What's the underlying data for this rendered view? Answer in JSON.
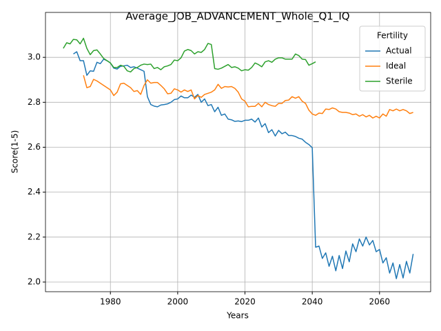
{
  "chart_data": {
    "type": "line",
    "title": "Average_JOB_ADVANCEMENT_Whole_Q1_IQ",
    "xlabel": "Years",
    "ylabel": "Score(1-5)",
    "legend_title": "Fertility",
    "legend_loc": "upper right",
    "grid": true,
    "xlim": [
      1960.7,
      2075.2
    ],
    "ylim": [
      1.957,
      3.2
    ],
    "xticks": [
      1980,
      2000,
      2020,
      2040,
      2060
    ],
    "yticks": [
      {
        "value": 2,
        "label": "2.0"
      },
      {
        "value": 2.2,
        "label": "2.2"
      },
      {
        "value": 2.4,
        "label": "2.4"
      },
      {
        "value": 2.6,
        "label": "2.6"
      },
      {
        "value": 2.8,
        "label": "2.8"
      },
      {
        "value": 3,
        "label": "3.0"
      }
    ],
    "x": [
      1966,
      1967,
      1968,
      1969,
      1970,
      1971,
      1972,
      1973,
      1974,
      1975,
      1976,
      1977,
      1978,
      1979,
      1980,
      1981,
      1982,
      1983,
      1984,
      1985,
      1986,
      1987,
      1988,
      1989,
      1990,
      1991,
      1992,
      1993,
      1994,
      1995,
      1996,
      1997,
      1998,
      1999,
      2000,
      2001,
      2002,
      2003,
      2004,
      2005,
      2006,
      2007,
      2008,
      2009,
      2010,
      2011,
      2012,
      2013,
      2014,
      2015,
      2016,
      2017,
      2018,
      2019,
      2020,
      2021,
      2022,
      2023,
      2024,
      2025,
      2026,
      2027,
      2028,
      2029,
      2030,
      2031,
      2032,
      2033,
      2034,
      2035,
      2036,
      2037,
      2038,
      2039,
      2040,
      2041,
      2042,
      2043,
      2044,
      2045,
      2046,
      2047,
      2048,
      2049,
      2050,
      2051,
      2052,
      2053,
      2054,
      2055,
      2056,
      2057,
      2058,
      2059,
      2060,
      2061,
      2062,
      2063,
      2064,
      2065,
      2066,
      2067,
      2068,
      2069,
      2070
    ],
    "series": [
      {
        "name": "Actual",
        "color": "#1f77b4",
        "values": [
          null,
          null,
          null,
          3.015,
          3.025,
          2.985,
          2.985,
          2.92,
          2.94,
          2.938,
          2.978,
          2.972,
          2.992,
          2.985,
          2.975,
          2.952,
          2.948,
          2.96,
          2.962,
          2.965,
          2.955,
          2.958,
          2.952,
          2.945,
          2.938,
          2.825,
          2.79,
          2.783,
          2.78,
          2.788,
          2.79,
          2.793,
          2.8,
          2.812,
          2.815,
          2.828,
          2.82,
          2.82,
          2.832,
          2.822,
          2.835,
          2.8,
          2.815,
          2.785,
          2.79,
          2.758,
          2.778,
          2.742,
          2.748,
          2.725,
          2.722,
          2.715,
          2.717,
          2.714,
          2.72,
          2.72,
          2.725,
          2.712,
          2.73,
          2.69,
          2.705,
          2.665,
          2.678,
          2.65,
          2.675,
          2.66,
          2.667,
          2.652,
          2.652,
          2.648,
          2.64,
          2.636,
          2.622,
          2.612,
          2.598,
          2.155,
          2.16,
          2.105,
          2.13,
          2.07,
          2.115,
          2.05,
          2.118,
          2.06,
          2.138,
          2.09,
          2.17,
          2.135,
          2.192,
          2.16,
          2.2,
          2.165,
          2.185,
          2.135,
          2.145,
          2.085,
          2.108,
          2.04,
          2.085,
          2.015,
          2.078,
          2.018,
          2.092,
          2.04,
          2.125
        ]
      },
      {
        "name": "Ideal",
        "color": "#ff7f0e",
        "values": [
          null,
          null,
          null,
          null,
          null,
          null,
          2.92,
          2.865,
          2.87,
          2.902,
          2.895,
          2.885,
          2.875,
          2.865,
          2.855,
          2.83,
          2.845,
          2.882,
          2.885,
          2.875,
          2.865,
          2.848,
          2.852,
          2.835,
          2.875,
          2.9,
          2.885,
          2.888,
          2.888,
          2.875,
          2.86,
          2.838,
          2.84,
          2.86,
          2.855,
          2.845,
          2.855,
          2.848,
          2.855,
          2.815,
          2.83,
          2.822,
          2.835,
          2.84,
          2.845,
          2.855,
          2.88,
          2.862,
          2.87,
          2.868,
          2.87,
          2.862,
          2.845,
          2.815,
          2.805,
          2.78,
          2.782,
          2.782,
          2.795,
          2.78,
          2.8,
          2.79,
          2.785,
          2.782,
          2.795,
          2.795,
          2.808,
          2.81,
          2.825,
          2.818,
          2.825,
          2.805,
          2.795,
          2.765,
          2.748,
          2.742,
          2.752,
          2.75,
          2.77,
          2.768,
          2.775,
          2.77,
          2.758,
          2.755,
          2.755,
          2.752,
          2.745,
          2.748,
          2.738,
          2.745,
          2.735,
          2.742,
          2.73,
          2.738,
          2.73,
          2.748,
          2.738,
          2.768,
          2.762,
          2.77,
          2.762,
          2.768,
          2.762,
          2.75,
          2.755
        ]
      },
      {
        "name": "Sterile",
        "color": "#2ca02c",
        "values": [
          3.04,
          3.065,
          3.06,
          3.08,
          3.078,
          3.06,
          3.085,
          3.04,
          3.012,
          3.03,
          3.033,
          3.015,
          2.995,
          2.985,
          2.975,
          2.955,
          2.955,
          2.965,
          2.96,
          2.94,
          2.935,
          2.95,
          2.955,
          2.965,
          2.97,
          2.968,
          2.97,
          2.95,
          2.955,
          2.945,
          2.958,
          2.962,
          2.968,
          2.988,
          2.985,
          2.998,
          3.028,
          3.035,
          3.03,
          3.015,
          3.025,
          3.022,
          3.035,
          3.062,
          3.057,
          2.95,
          2.947,
          2.952,
          2.96,
          2.968,
          2.955,
          2.958,
          2.952,
          2.94,
          2.945,
          2.943,
          2.955,
          2.975,
          2.968,
          2.958,
          2.98,
          2.985,
          2.978,
          2.992,
          2.998,
          2.998,
          2.992,
          2.992,
          2.992,
          3.015,
          3.008,
          2.992,
          2.99,
          2.965,
          2.972,
          2.98,
          null,
          null,
          null,
          null,
          null,
          null,
          null,
          null,
          null,
          null,
          null,
          null,
          null,
          null,
          null,
          null,
          null,
          null,
          null,
          null,
          null,
          null,
          null,
          null,
          null,
          null,
          null,
          null,
          null
        ]
      }
    ]
  }
}
